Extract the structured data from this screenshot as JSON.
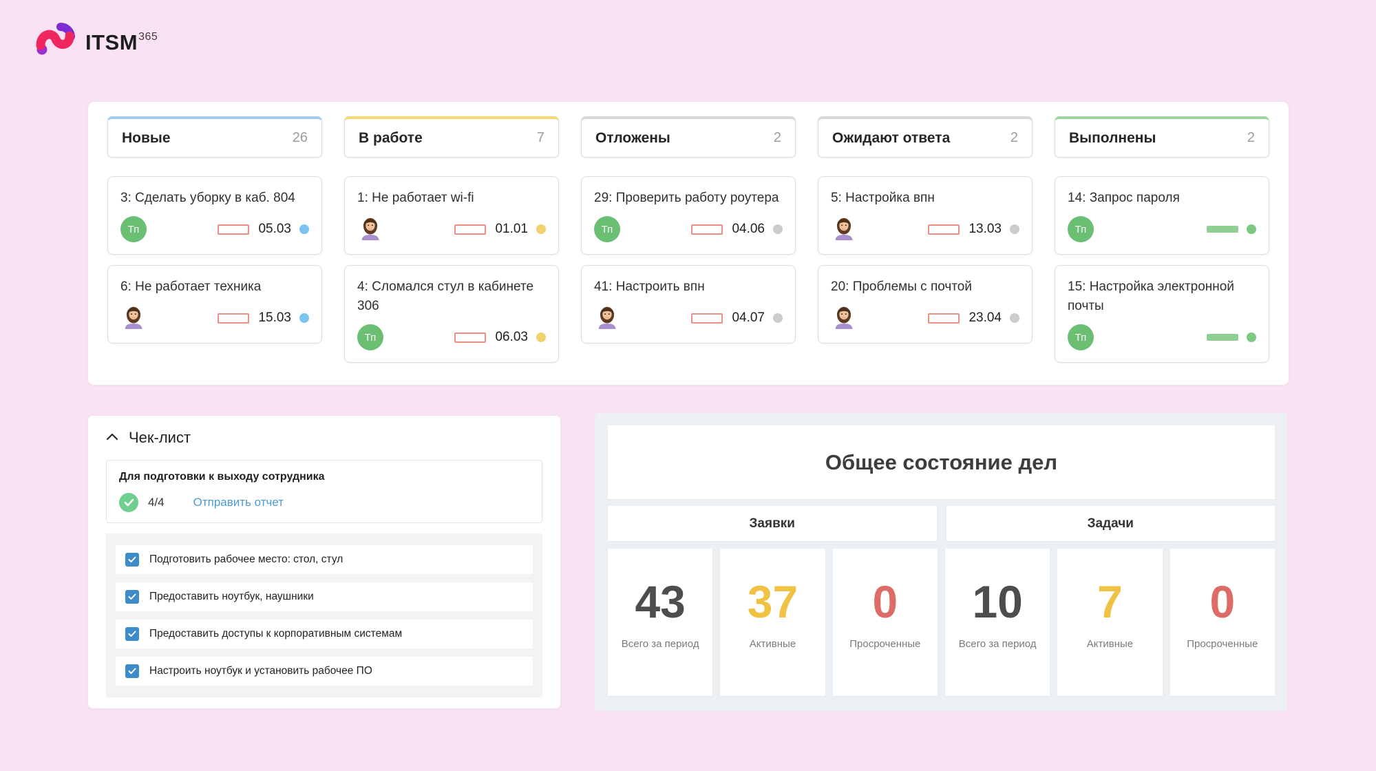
{
  "app": {
    "logo_text": "ITSM",
    "logo_sup": "365"
  },
  "board": {
    "team_avatar_label": "Тп",
    "columns": [
      {
        "title": "Новые",
        "count": "26",
        "accent": "#9fcdf0",
        "cards": [
          {
            "title": "3: Сделать уборку в каб. 804",
            "avatar": "support-team",
            "bar": "outline",
            "date": "05.03",
            "dot_color": "#7cc4f0"
          },
          {
            "title": "6: Не работает техника",
            "avatar": "user",
            "bar": "outline",
            "date": "15.03",
            "dot_color": "#7cc4f0"
          }
        ]
      },
      {
        "title": "В работе",
        "count": "7",
        "accent": "#f3d876",
        "cards": [
          {
            "title": "1: Не работает wi-fi",
            "avatar": "user",
            "bar": "outline",
            "date": "01.01",
            "dot_color": "#f1d36e"
          },
          {
            "title": "4: Сломался стул в кабинете 306",
            "avatar": "support-team",
            "bar": "outline",
            "date": "06.03",
            "dot_color": "#f1d36e"
          }
        ]
      },
      {
        "title": "Отложены",
        "count": "2",
        "accent": "#d8d8d8",
        "cards": [
          {
            "title": "29: Проверить работу роутера",
            "avatar": "support-team",
            "bar": "outline",
            "date": "04.06",
            "dot_color": "#cccccc"
          },
          {
            "title": "41: Настроить впн",
            "avatar": "user",
            "bar": "outline",
            "date": "04.07",
            "dot_color": "#cccccc"
          }
        ]
      },
      {
        "title": "Ожидают ответа",
        "count": "2",
        "accent": "#d8d8d8",
        "cards": [
          {
            "title": "5: Настройка впн",
            "avatar": "user",
            "bar": "outline",
            "date": "13.03",
            "dot_color": "#cccccc"
          },
          {
            "title": "20: Проблемы с почтой",
            "avatar": "user",
            "bar": "outline",
            "date": "23.04",
            "dot_color": "#cccccc"
          }
        ]
      },
      {
        "title": "Выполнены",
        "count": "2",
        "accent": "#9ed4a0",
        "cards": [
          {
            "title": "14: Запрос пароля",
            "avatar": "support-team",
            "bar": "solid",
            "date": "",
            "dot_color": "#7cc981"
          },
          {
            "title": "15: Настройка электронной почты",
            "avatar": "support-team",
            "bar": "solid",
            "date": "",
            "dot_color": "#7cc981"
          }
        ]
      }
    ]
  },
  "checklist": {
    "title": "Чек-лист",
    "card_title": "Для подготовки к выходу сотрудника",
    "progress": "4/4",
    "link_label": "Отправить отчет",
    "items": [
      {
        "label": "Подготовить рабочее место: стол, стул",
        "checked": true
      },
      {
        "label": "Предоставить ноутбук, наушники",
        "checked": true
      },
      {
        "label": "Предоставить доступы к корпоративным системам",
        "checked": true
      },
      {
        "label": "Настроить ноутбук и установить рабочее ПО",
        "checked": true
      }
    ]
  },
  "summary": {
    "title": "Общее состояние дел",
    "groups": [
      {
        "title": "Заявки",
        "stats": [
          {
            "value": "43",
            "label": "Всего за период",
            "color": "#4d4d4d"
          },
          {
            "value": "37",
            "label": "Активные",
            "color": "#f0c244"
          },
          {
            "value": "0",
            "label": "Просроченные",
            "color": "#dd6b66"
          }
        ]
      },
      {
        "title": "Задачи",
        "stats": [
          {
            "value": "10",
            "label": "Всего за период",
            "color": "#4d4d4d"
          },
          {
            "value": "7",
            "label": "Активные",
            "color": "#f0c244"
          },
          {
            "value": "0",
            "label": "Просроченные",
            "color": "#dd6b66"
          }
        ]
      }
    ]
  },
  "colors": {
    "bar_outline": "#ef8e84",
    "bar_solid": "#8fcf92",
    "checkbox_blue": "#3d8bc9",
    "progress_circle_green": "#6fcf8f",
    "page_background": "#f9e2f4"
  }
}
